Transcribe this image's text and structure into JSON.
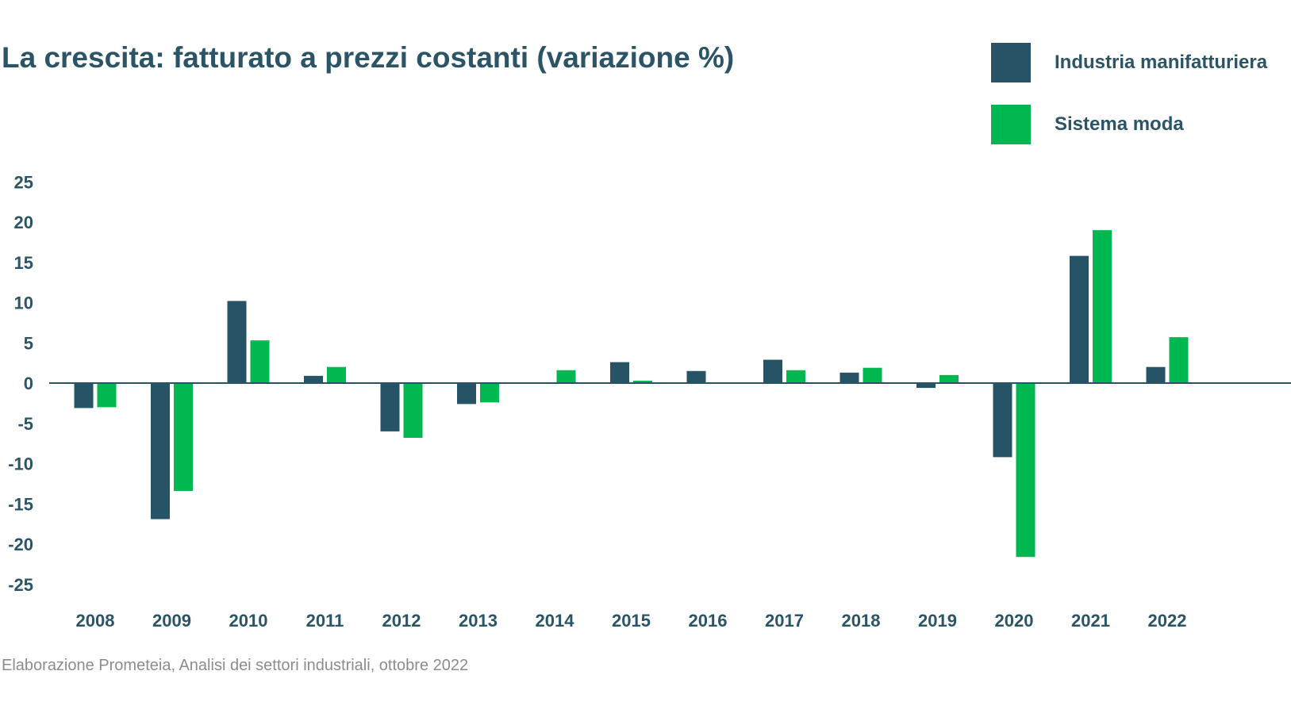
{
  "colors": {
    "industria": "#265466",
    "moda": "#00b84f",
    "text": "#2b5566",
    "source": "#8c8c8c"
  },
  "source": "Elaborazione Prometeia, Analisi dei settori industriali, ottobre 2022",
  "chart_data": {
    "type": "bar",
    "title": "La crescita: fatturato a prezzi costanti (variazione %)",
    "xlabel": "",
    "ylabel": "",
    "ylim": [
      -25,
      25
    ],
    "yticks": [
      25,
      20,
      15,
      10,
      5,
      0,
      -5,
      -10,
      -15,
      -20,
      -25
    ],
    "grid": false,
    "legend_position": "top-right",
    "categories": [
      "2008",
      "2009",
      "2010",
      "2011",
      "2012",
      "2013",
      "2014",
      "2015",
      "2016",
      "2017",
      "2018",
      "2019",
      "2020",
      "2021",
      "2022"
    ],
    "series": [
      {
        "name": "Industria manifatturiera",
        "color": "#265466",
        "values": [
          -3.1,
          -16.9,
          10.2,
          0.9,
          -6.0,
          -2.6,
          0.0,
          2.6,
          1.5,
          2.9,
          1.3,
          -0.6,
          -9.2,
          15.8,
          2.0
        ]
      },
      {
        "name": "Sistema moda",
        "color": "#00b84f",
        "values": [
          -3.0,
          -13.4,
          5.3,
          2.0,
          -6.8,
          -2.4,
          1.6,
          0.3,
          0.0,
          1.6,
          1.9,
          1.0,
          -21.6,
          19.0,
          5.7
        ]
      }
    ]
  }
}
